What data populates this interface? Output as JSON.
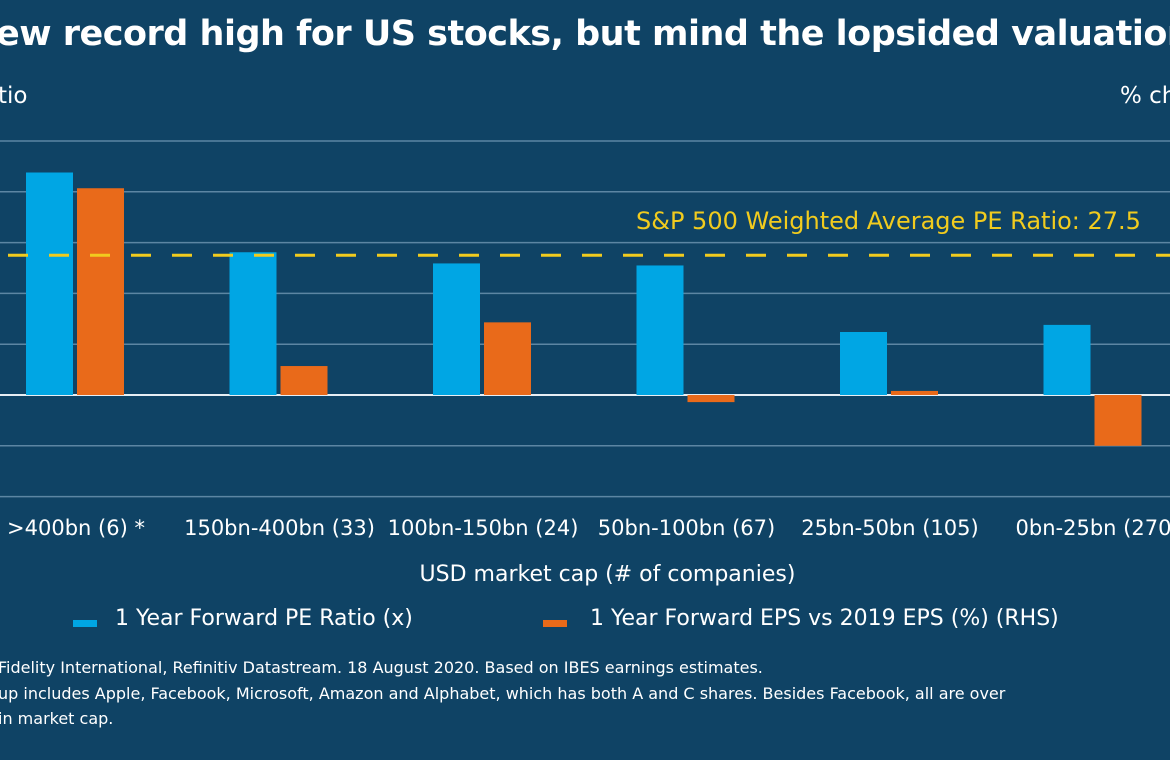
{
  "title": "ew record high for US stocks, but mind the lopsided valuation",
  "colors": {
    "background": "#0f4365",
    "pe": "#00a6e4",
    "eps": "#e96a1a",
    "reference": "#f1cb1e",
    "grid": "#5c86a3"
  },
  "chart_data": {
    "type": "bar",
    "title": "ew record high for US stocks, but mind the lopsided valuation",
    "ylabel": "tio",
    "y2label": "% ch",
    "xlabel": "USD market cap (# of companies)",
    "categories": [
      ">400bn (6) *",
      "150bn-400bn (33)",
      "100bn-150bn (24)",
      "50bn-100bn (67)",
      "25bn-50bn (105)",
      "0bn-25bn (270"
    ],
    "series": [
      {
        "name": "1 Year Forward PE Ratio (x)",
        "axis": "left",
        "color": "#00a6e4",
        "values": [
          43.8,
          28.1,
          25.9,
          25.5,
          12.4,
          13.8
        ]
      },
      {
        "name": "1 Year Forward EPS vs 2019 EPS (%) (RHS)",
        "axis": "right",
        "color": "#e96a1a",
        "values": [
          40.7,
          5.7,
          14.3,
          -1.4,
          0.8,
          -10.0
        ]
      }
    ],
    "reference_line": {
      "label": "S&P 500 Weighted Average PE Ratio: 27.5",
      "value": 27.5,
      "style": "dashed",
      "color": "#f1cb1e"
    },
    "ylim": [
      -20,
      50
    ],
    "grid": true,
    "legend_position": "bottom"
  },
  "footnotes": [
    "Fidelity International, Refinitiv Datastream. 18 August 2020. Based on IBES earnings estimates.",
    "up includes Apple, Facebook, Microsoft, Amazon and Alphabet, which has both A and C shares. Besides Facebook, all are over",
    " in market cap."
  ]
}
